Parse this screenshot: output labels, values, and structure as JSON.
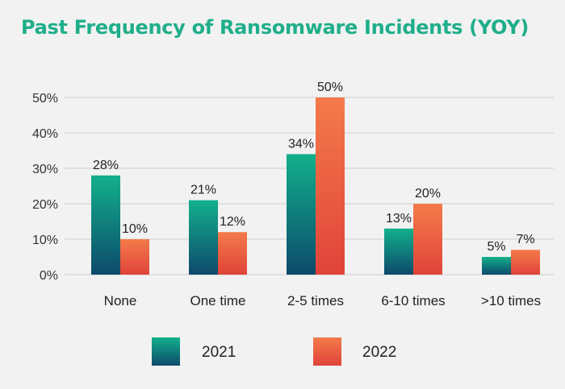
{
  "chart_data": {
    "type": "bar",
    "title": "Past Frequency of Ransomware Incidents (YOY)",
    "categories": [
      "None",
      "One time",
      "2-5 times",
      "6-10 times",
      ">10 times"
    ],
    "series": [
      {
        "name": "2021",
        "values": [
          28,
          21,
          34,
          13,
          5
        ]
      },
      {
        "name": "2022",
        "values": [
          10,
          12,
          50,
          20,
          7
        ]
      }
    ],
    "value_suffix": "%",
    "ylim": [
      0,
      50
    ],
    "yticks": [
      0,
      10,
      20,
      30,
      40,
      50
    ],
    "ytick_labels": [
      "0%",
      "10%",
      "20%",
      "30%",
      "40%",
      "50%"
    ],
    "xlabel": "",
    "ylabel": "",
    "grid": true,
    "legend_position": "bottom",
    "colors": {
      "2021_top": "#12b08c",
      "2021_bottom": "#0d4a6b",
      "2022_top": "#f47b4a",
      "2022_bottom": "#e0433a",
      "title": "#1fae8a",
      "grid": "#cfcfcf"
    }
  }
}
